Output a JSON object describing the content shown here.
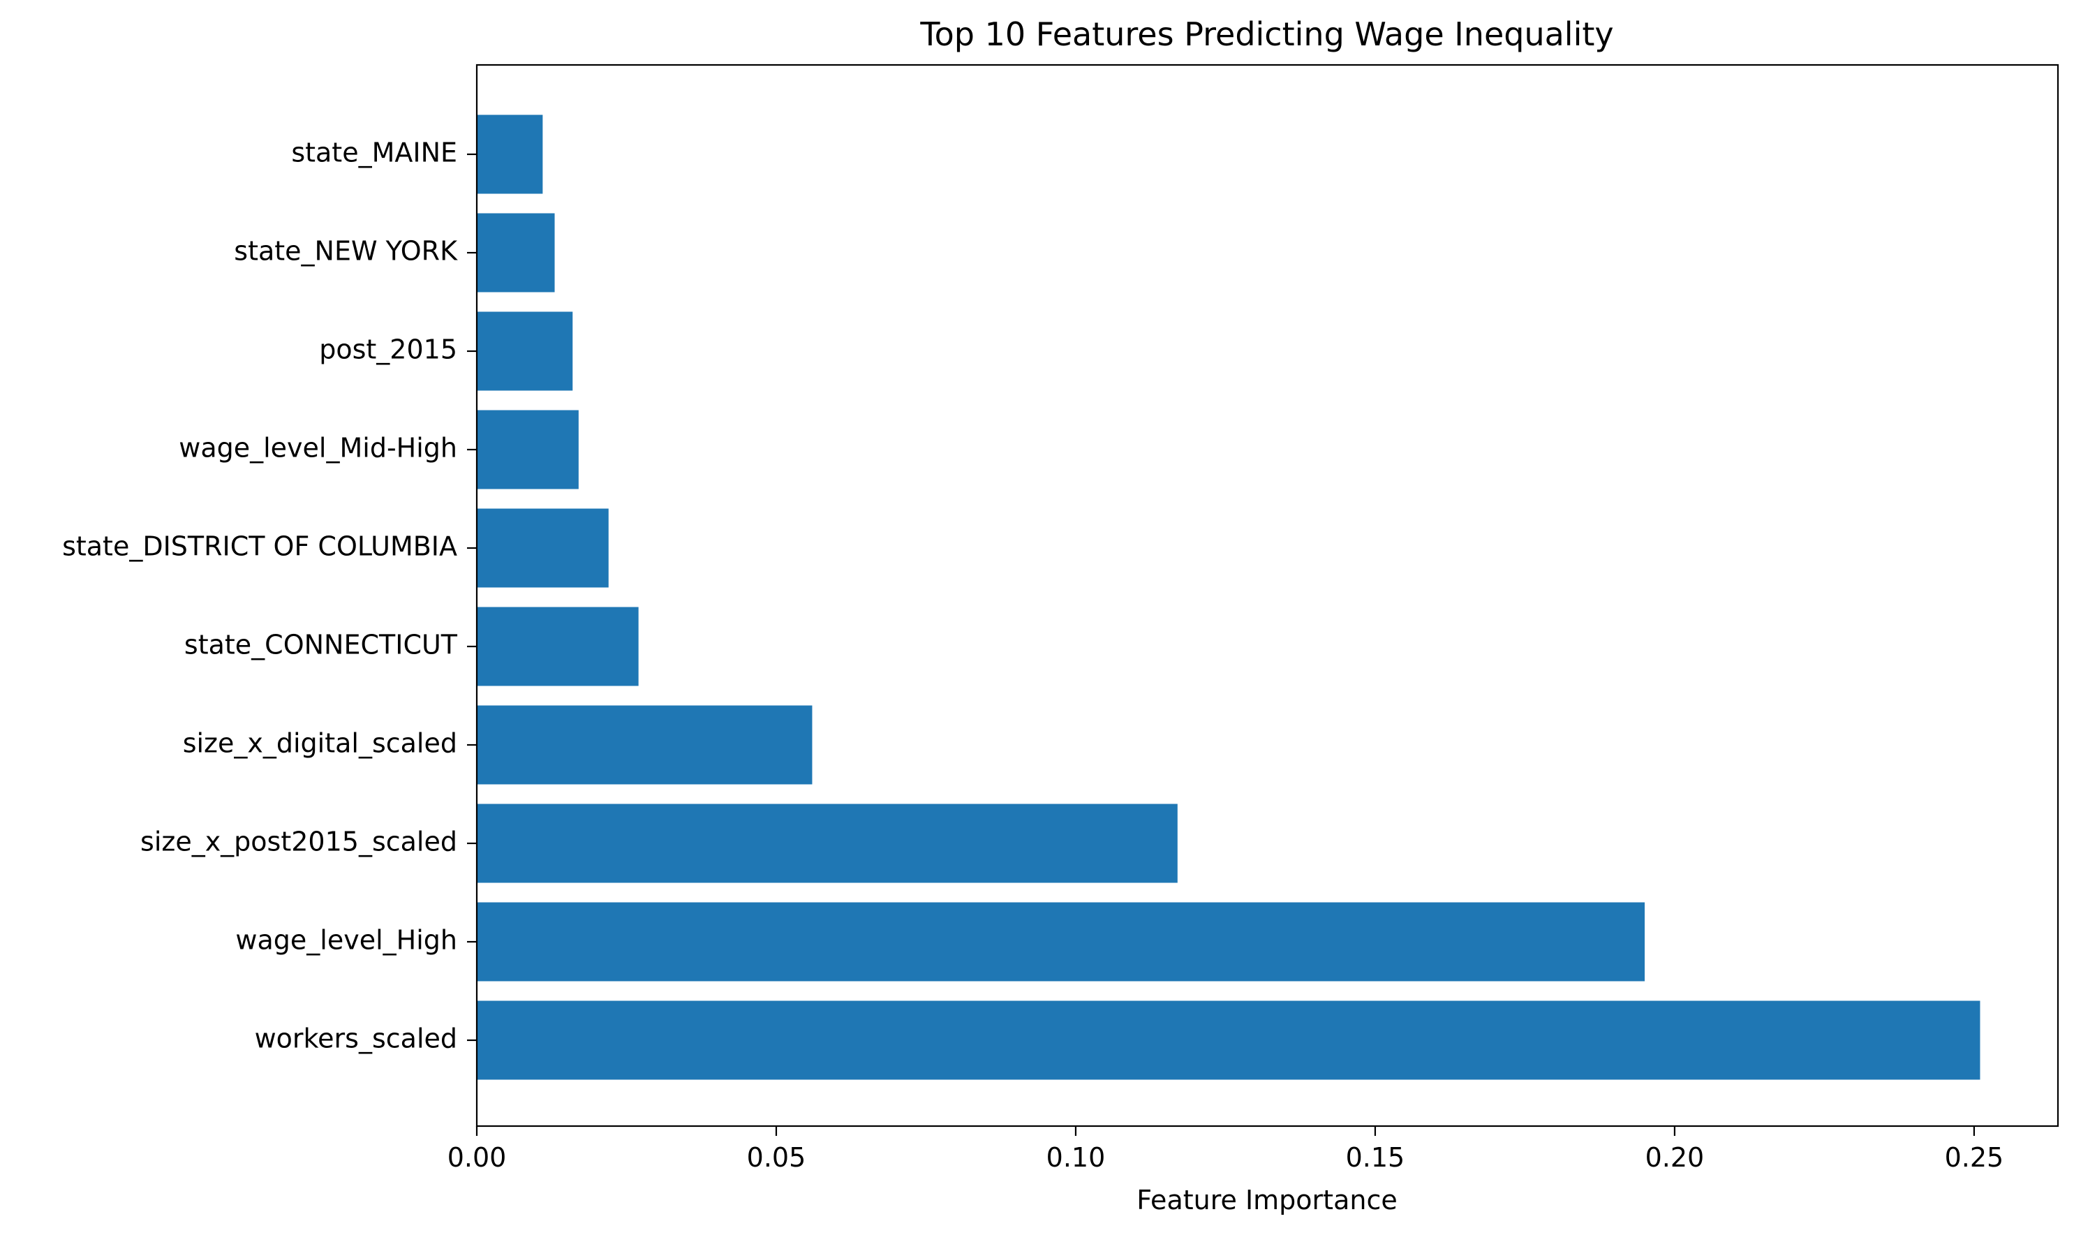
{
  "chart_data": {
    "type": "bar",
    "orientation": "horizontal",
    "title": "Top 10 Features Predicting Wage Inequality",
    "xlabel": "Feature Importance",
    "ylabel": "",
    "xlim": [
      0,
      0.264
    ],
    "xticks": [
      0.0,
      0.05,
      0.1,
      0.15,
      0.2,
      0.25
    ],
    "xtick_labels": [
      "0.00",
      "0.05",
      "0.10",
      "0.15",
      "0.20",
      "0.25"
    ],
    "categories": [
      "workers_scaled",
      "wage_level_High",
      "size_x_post2015_scaled",
      "size_x_digital_scaled",
      "state_CONNECTICUT",
      "state_DISTRICT OF COLUMBIA",
      "wage_level_Mid-High",
      "post_2015",
      "state_NEW YORK",
      "state_MAINE"
    ],
    "values": [
      0.251,
      0.195,
      0.117,
      0.056,
      0.027,
      0.022,
      0.017,
      0.016,
      0.013,
      0.011
    ],
    "bar_color": "#1f77b4",
    "grid": false,
    "legend": false
  }
}
